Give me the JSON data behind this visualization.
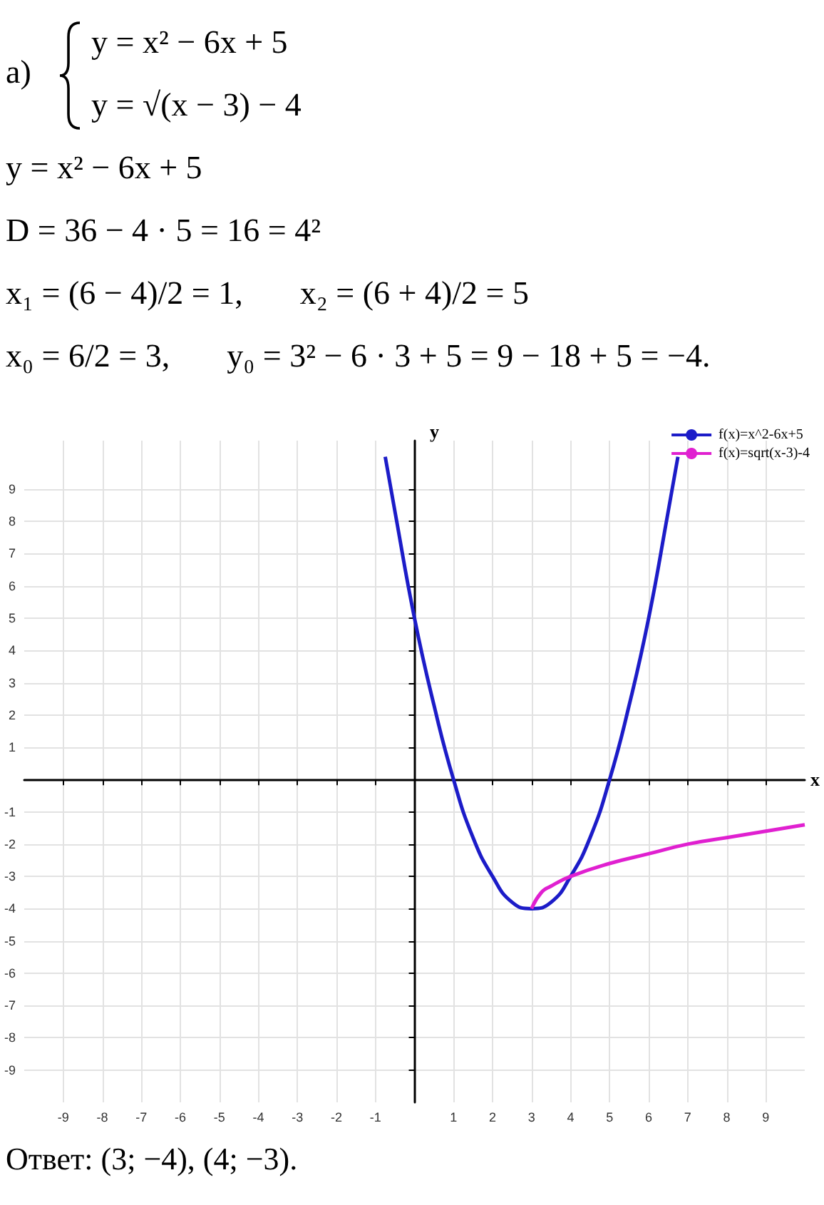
{
  "chart_data": {
    "type": "line",
    "annotations": [
      "а)",
      "y = x² − 6x + 5",
      "y = √(x − 3) − 4",
      "y = x² − 6x + 5",
      "D = 36 − 4 · 5 = 16 = 4²",
      "x₁ = (6 − 4)/2 = 1,",
      "x₂ = (6 + 4)/2 = 5",
      "x₀ = 6/2 = 3,",
      "y₀ = 3² − 6 · 3 + 5 = 9 − 18 + 5 = −4.",
      "Ответ: (3; −4), (4; −3)."
    ],
    "xlabel": "x",
    "ylabel": "y",
    "xlim": [
      -10,
      10
    ],
    "ylim": [
      -10,
      10.5
    ],
    "xticks": [
      -9,
      -8,
      -7,
      -6,
      -5,
      -4,
      -3,
      -2,
      -1,
      1,
      2,
      3,
      4,
      5,
      6,
      7,
      8,
      9
    ],
    "yticks": [
      -9,
      -8,
      -7,
      -6,
      -5,
      -4,
      -3,
      -2,
      -1,
      1,
      2,
      3,
      4,
      5,
      6,
      7,
      8,
      9
    ],
    "grid": true,
    "legend": "top right",
    "marker": "none",
    "line_style": "solid",
    "series": [
      {
        "name": "f(x)=x^2-6x+5",
        "color": "#1c1cc8",
        "x": [
          -0.75,
          -0.5,
          0,
          0.5,
          1,
          1.5,
          2,
          2.5,
          3,
          3.5,
          4,
          4.5,
          5,
          5.5,
          6,
          6.5,
          6.75
        ],
        "values": [
          10,
          8.3,
          5,
          2.3,
          0,
          -1.8,
          -3,
          -3.8,
          -4,
          -3.8,
          -3,
          -1.8,
          0,
          2.3,
          5,
          8.3,
          10
        ]
      },
      {
        "name": "f(x)=sqrt(x-3)-4",
        "color": "#e020d0",
        "x": [
          3,
          3.25,
          3.5,
          4,
          5,
          6,
          7,
          8,
          9,
          10
        ],
        "values": [
          -4,
          -3.5,
          -3.3,
          -3,
          -2.6,
          -2.3,
          -2,
          -1.8,
          -1.6,
          -1.4
        ]
      }
    ]
  }
}
